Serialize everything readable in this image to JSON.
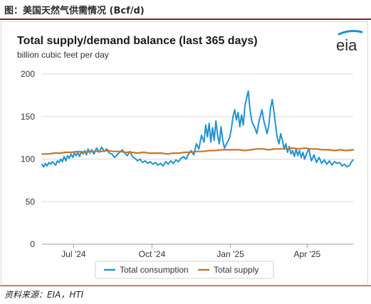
{
  "figure_caption": "图：美国天然气供需情况 (Bcf/d)",
  "source_note": "资料来源：EIA，HTI",
  "logo_text": "eia",
  "colors": {
    "consumption": "#1f93d3",
    "supply": "#c8742c",
    "grid": "#d8d8d8",
    "caption_rule": "#8a1f1f"
  },
  "chart_data": {
    "type": "line",
    "title": "Total supply/demand balance (last 365 days)",
    "subtitle": "billion cubic feet per day",
    "xlabel": "",
    "ylabel": "",
    "ylim": [
      0,
      200
    ],
    "yticks": [
      0,
      50,
      100,
      150,
      200
    ],
    "xlim": [
      "2024-05-25",
      "2025-05-25"
    ],
    "xticks": [
      {
        "label": "Jul '24",
        "date": "2024-07-01"
      },
      {
        "label": "Oct '24",
        "date": "2024-10-01"
      },
      {
        "label": "Jan '25",
        "date": "2025-01-01"
      },
      {
        "label": "Apr '25",
        "date": "2025-04-01"
      }
    ],
    "grid": true,
    "legend_position": "bottom",
    "series": [
      {
        "name": "Total consumption",
        "color": "#1f93d3",
        "points": [
          [
            "2024-05-25",
            94
          ],
          [
            "2024-05-27",
            91
          ],
          [
            "2024-05-29",
            95
          ],
          [
            "2024-05-31",
            92
          ],
          [
            "2024-06-02",
            96
          ],
          [
            "2024-06-04",
            94
          ],
          [
            "2024-06-06",
            97
          ],
          [
            "2024-06-08",
            95
          ],
          [
            "2024-06-10",
            93
          ],
          [
            "2024-06-12",
            98
          ],
          [
            "2024-06-14",
            96
          ],
          [
            "2024-06-16",
            100
          ],
          [
            "2024-06-18",
            97
          ],
          [
            "2024-06-20",
            103
          ],
          [
            "2024-06-22",
            98
          ],
          [
            "2024-06-24",
            104
          ],
          [
            "2024-06-26",
            101
          ],
          [
            "2024-06-28",
            106
          ],
          [
            "2024-06-30",
            102
          ],
          [
            "2024-07-02",
            107
          ],
          [
            "2024-07-04",
            104
          ],
          [
            "2024-07-06",
            108
          ],
          [
            "2024-07-08",
            103
          ],
          [
            "2024-07-10",
            109
          ],
          [
            "2024-07-12",
            106
          ],
          [
            "2024-07-14",
            110
          ],
          [
            "2024-07-16",
            105
          ],
          [
            "2024-07-18",
            112
          ],
          [
            "2024-07-20",
            107
          ],
          [
            "2024-07-22",
            111
          ],
          [
            "2024-07-25",
            106
          ],
          [
            "2024-07-28",
            113
          ],
          [
            "2024-07-31",
            108
          ],
          [
            "2024-08-03",
            114
          ],
          [
            "2024-08-06",
            109
          ],
          [
            "2024-08-09",
            112
          ],
          [
            "2024-08-12",
            107
          ],
          [
            "2024-08-15",
            106
          ],
          [
            "2024-08-18",
            102
          ],
          [
            "2024-08-21",
            105
          ],
          [
            "2024-08-24",
            108
          ],
          [
            "2024-08-27",
            111
          ],
          [
            "2024-08-30",
            107
          ],
          [
            "2024-09-02",
            104
          ],
          [
            "2024-09-05",
            109
          ],
          [
            "2024-09-08",
            103
          ],
          [
            "2024-09-11",
            101
          ],
          [
            "2024-09-14",
            98
          ],
          [
            "2024-09-17",
            100
          ],
          [
            "2024-09-20",
            96
          ],
          [
            "2024-09-23",
            98
          ],
          [
            "2024-09-26",
            95
          ],
          [
            "2024-09-29",
            97
          ],
          [
            "2024-10-02",
            94
          ],
          [
            "2024-10-05",
            96
          ],
          [
            "2024-10-08",
            93
          ],
          [
            "2024-10-11",
            95
          ],
          [
            "2024-10-14",
            92
          ],
          [
            "2024-10-17",
            97
          ],
          [
            "2024-10-20",
            94
          ],
          [
            "2024-10-23",
            98
          ],
          [
            "2024-10-26",
            95
          ],
          [
            "2024-10-29",
            99
          ],
          [
            "2024-11-01",
            97
          ],
          [
            "2024-11-04",
            101
          ],
          [
            "2024-11-07",
            103
          ],
          [
            "2024-11-10",
            100
          ],
          [
            "2024-11-13",
            106
          ],
          [
            "2024-11-16",
            110
          ],
          [
            "2024-11-19",
            105
          ],
          [
            "2024-11-22",
            118
          ],
          [
            "2024-11-25",
            112
          ],
          [
            "2024-11-28",
            128
          ],
          [
            "2024-12-01",
            120
          ],
          [
            "2024-12-03",
            140
          ],
          [
            "2024-12-05",
            126
          ],
          [
            "2024-12-07",
            142
          ],
          [
            "2024-12-09",
            120
          ],
          [
            "2024-12-11",
            137
          ],
          [
            "2024-12-13",
            122
          ],
          [
            "2024-12-15",
            145
          ],
          [
            "2024-12-17",
            128
          ],
          [
            "2024-12-19",
            118
          ],
          [
            "2024-12-21",
            138
          ],
          [
            "2024-12-23",
            122
          ],
          [
            "2024-12-25",
            113
          ],
          [
            "2024-12-27",
            117
          ],
          [
            "2024-12-29",
            121
          ],
          [
            "2024-12-31",
            125
          ],
          [
            "2025-01-02",
            135
          ],
          [
            "2025-01-04",
            150
          ],
          [
            "2025-01-06",
            158
          ],
          [
            "2025-01-08",
            146
          ],
          [
            "2025-01-10",
            155
          ],
          [
            "2025-01-12",
            138
          ],
          [
            "2025-01-14",
            152
          ],
          [
            "2025-01-16",
            140
          ],
          [
            "2025-01-18",
            162
          ],
          [
            "2025-01-20",
            172
          ],
          [
            "2025-01-22",
            180
          ],
          [
            "2025-01-24",
            158
          ],
          [
            "2025-01-26",
            145
          ],
          [
            "2025-01-28",
            140
          ],
          [
            "2025-01-30",
            136
          ],
          [
            "2025-02-01",
            130
          ],
          [
            "2025-02-03",
            142
          ],
          [
            "2025-02-05",
            150
          ],
          [
            "2025-02-07",
            158
          ],
          [
            "2025-02-09",
            146
          ],
          [
            "2025-02-11",
            138
          ],
          [
            "2025-02-13",
            130
          ],
          [
            "2025-02-15",
            140
          ],
          [
            "2025-02-17",
            160
          ],
          [
            "2025-02-19",
            170
          ],
          [
            "2025-02-21",
            156
          ],
          [
            "2025-02-23",
            140
          ],
          [
            "2025-02-25",
            125
          ],
          [
            "2025-02-27",
            118
          ],
          [
            "2025-03-01",
            130
          ],
          [
            "2025-03-03",
            122
          ],
          [
            "2025-03-05",
            112
          ],
          [
            "2025-03-07",
            118
          ],
          [
            "2025-03-09",
            108
          ],
          [
            "2025-03-11",
            115
          ],
          [
            "2025-03-13",
            106
          ],
          [
            "2025-03-15",
            110
          ],
          [
            "2025-03-17",
            103
          ],
          [
            "2025-03-19",
            112
          ],
          [
            "2025-03-21",
            104
          ],
          [
            "2025-03-23",
            110
          ],
          [
            "2025-03-25",
            102
          ],
          [
            "2025-03-27",
            108
          ],
          [
            "2025-03-29",
            100
          ],
          [
            "2025-03-31",
            106
          ],
          [
            "2025-04-03",
            112
          ],
          [
            "2025-04-06",
            98
          ],
          [
            "2025-04-09",
            105
          ],
          [
            "2025-04-12",
            96
          ],
          [
            "2025-04-15",
            102
          ],
          [
            "2025-04-18",
            95
          ],
          [
            "2025-04-21",
            99
          ],
          [
            "2025-04-24",
            94
          ],
          [
            "2025-04-27",
            98
          ],
          [
            "2025-04-30",
            93
          ],
          [
            "2025-05-03",
            97
          ],
          [
            "2025-05-06",
            95
          ],
          [
            "2025-05-09",
            96
          ],
          [
            "2025-05-12",
            92
          ],
          [
            "2025-05-15",
            94
          ],
          [
            "2025-05-18",
            91
          ],
          [
            "2025-05-21",
            93
          ],
          [
            "2025-05-23",
            97
          ],
          [
            "2025-05-25",
            99
          ]
        ]
      },
      {
        "name": "Total supply",
        "color": "#c8742c",
        "points": [
          [
            "2024-05-25",
            106
          ],
          [
            "2024-06-01",
            106
          ],
          [
            "2024-06-08",
            107
          ],
          [
            "2024-06-15",
            107
          ],
          [
            "2024-06-22",
            108
          ],
          [
            "2024-06-29",
            108
          ],
          [
            "2024-07-06",
            109
          ],
          [
            "2024-07-13",
            108
          ],
          [
            "2024-07-20",
            109
          ],
          [
            "2024-07-27",
            109
          ],
          [
            "2024-08-03",
            109
          ],
          [
            "2024-08-10",
            110
          ],
          [
            "2024-08-17",
            109
          ],
          [
            "2024-08-24",
            109
          ],
          [
            "2024-08-31",
            108
          ],
          [
            "2024-09-07",
            108
          ],
          [
            "2024-09-14",
            107
          ],
          [
            "2024-09-21",
            108
          ],
          [
            "2024-09-28",
            107
          ],
          [
            "2024-10-05",
            107
          ],
          [
            "2024-10-12",
            107
          ],
          [
            "2024-10-19",
            106
          ],
          [
            "2024-10-26",
            107
          ],
          [
            "2024-11-02",
            107
          ],
          [
            "2024-11-09",
            108
          ],
          [
            "2024-11-16",
            108
          ],
          [
            "2024-11-23",
            109
          ],
          [
            "2024-11-30",
            109
          ],
          [
            "2024-12-07",
            110
          ],
          [
            "2024-12-14",
            110
          ],
          [
            "2024-12-21",
            111
          ],
          [
            "2024-12-28",
            111
          ],
          [
            "2025-01-04",
            111
          ],
          [
            "2025-01-11",
            111
          ],
          [
            "2025-01-18",
            110
          ],
          [
            "2025-01-25",
            111
          ],
          [
            "2025-02-01",
            112
          ],
          [
            "2025-02-08",
            112
          ],
          [
            "2025-02-15",
            111
          ],
          [
            "2025-02-22",
            112
          ],
          [
            "2025-03-01",
            112
          ],
          [
            "2025-03-08",
            112
          ],
          [
            "2025-03-15",
            113
          ],
          [
            "2025-03-22",
            112
          ],
          [
            "2025-03-29",
            113
          ],
          [
            "2025-04-05",
            112
          ],
          [
            "2025-04-12",
            112
          ],
          [
            "2025-04-19",
            111
          ],
          [
            "2025-04-26",
            111
          ],
          [
            "2025-05-03",
            110
          ],
          [
            "2025-05-10",
            111
          ],
          [
            "2025-05-17",
            110
          ],
          [
            "2025-05-25",
            111
          ]
        ]
      }
    ]
  }
}
